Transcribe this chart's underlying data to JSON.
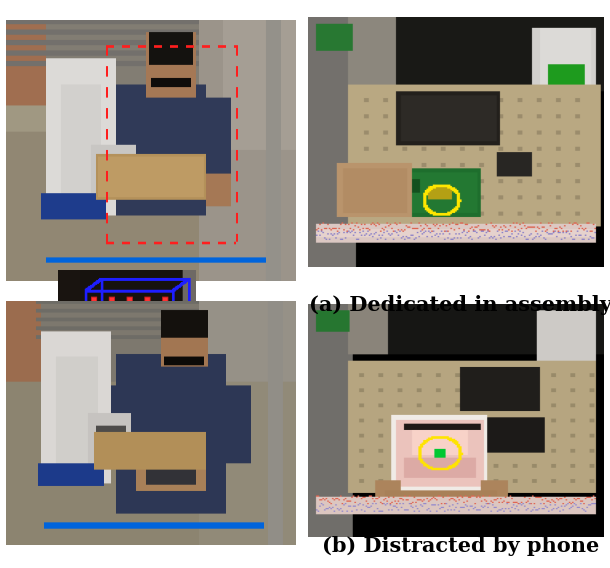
{
  "caption_a": "(a) Dedicated in assembly",
  "caption_b": "(b) Distracted by phone",
  "caption_fontsize": 15,
  "caption_fontweight": "bold",
  "fig_width": 6.1,
  "fig_height": 5.68,
  "bg_color": "#ffffff"
}
